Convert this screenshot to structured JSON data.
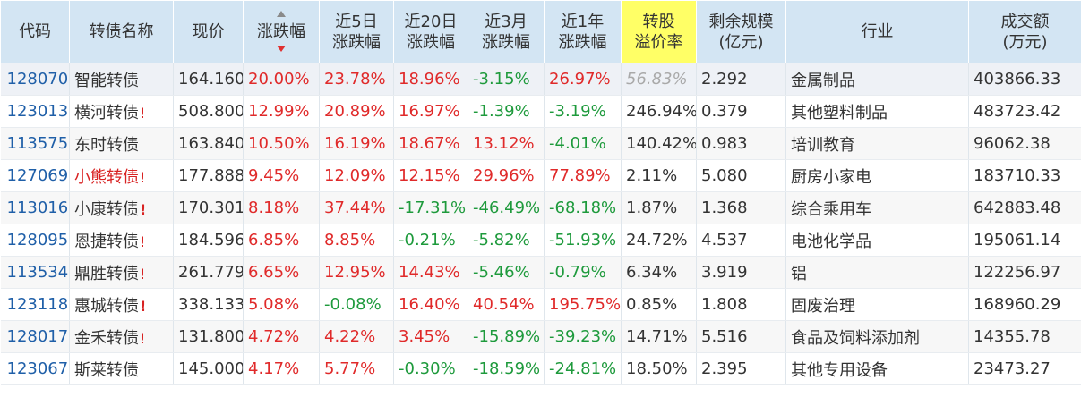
{
  "columns": [
    {
      "id": "code",
      "lines": [
        "代码",
        ""
      ]
    },
    {
      "id": "name",
      "lines": [
        "转债名称",
        ""
      ]
    },
    {
      "id": "price",
      "lines": [
        "现价",
        ""
      ]
    },
    {
      "id": "change",
      "lines": [
        "涨跌幅",
        ""
      ],
      "sorted": "desc"
    },
    {
      "id": "chg5d",
      "lines": [
        "近5日",
        "涨跌幅"
      ]
    },
    {
      "id": "chg20d",
      "lines": [
        "近20日",
        "涨跌幅"
      ]
    },
    {
      "id": "chg3m",
      "lines": [
        "近3月",
        "涨跌幅"
      ]
    },
    {
      "id": "chg1y",
      "lines": [
        "近1年",
        "涨跌幅"
      ]
    },
    {
      "id": "premium",
      "lines": [
        "转股",
        "溢价率"
      ],
      "highlight": "#ffff66"
    },
    {
      "id": "remaining",
      "lines": [
        "剩余规模",
        "(亿元)"
      ]
    },
    {
      "id": "industry",
      "lines": [
        "行业",
        ""
      ]
    },
    {
      "id": "volume",
      "lines": [
        "成交额",
        "(万元)"
      ]
    }
  ],
  "rows": [
    {
      "code": "128070",
      "name": "智能转债",
      "flag": "",
      "name_color": "normal",
      "price": "164.160",
      "change": "20.00%",
      "chg5d": "23.78%",
      "chg20d": "18.96%",
      "chg3m": "-3.15%",
      "chg1y": "26.97%",
      "premium": "56.83%",
      "premium_style": "gray-italic",
      "remaining": "2.292",
      "industry": "金属制品",
      "volume": "403866.33"
    },
    {
      "code": "123013",
      "name": "横河转债",
      "flag": "!",
      "name_color": "normal",
      "price": "508.800",
      "change": "12.99%",
      "chg5d": "20.89%",
      "chg20d": "16.97%",
      "chg3m": "-1.39%",
      "chg1y": "-3.19%",
      "premium": "246.94%",
      "premium_style": "normal",
      "remaining": "0.379",
      "industry": "其他塑料制品",
      "volume": "483723.42"
    },
    {
      "code": "113575",
      "name": "东时转债",
      "flag": "",
      "name_color": "normal",
      "price": "163.840",
      "change": "10.50%",
      "chg5d": "16.19%",
      "chg20d": "18.67%",
      "chg3m": "13.12%",
      "chg1y": "-4.01%",
      "premium": "140.42%",
      "premium_style": "normal",
      "remaining": "0.983",
      "industry": "培训教育",
      "volume": "96062.38"
    },
    {
      "code": "127069",
      "name": "小熊转债",
      "flag": "!",
      "name_color": "red",
      "price": "177.888",
      "change": "9.45%",
      "chg5d": "12.09%",
      "chg20d": "12.15%",
      "chg3m": "29.96%",
      "chg1y": "77.89%",
      "premium": "2.11%",
      "premium_style": "normal",
      "remaining": "5.080",
      "industry": "厨房小家电",
      "volume": "183710.33"
    },
    {
      "code": "113016",
      "name": "小康转债",
      "flag": "!",
      "flag_big": true,
      "name_color": "normal",
      "price": "170.301",
      "change": "8.18%",
      "chg5d": "37.44%",
      "chg20d": "-17.31%",
      "chg3m": "-46.49%",
      "chg1y": "-68.18%",
      "premium": "1.87%",
      "premium_style": "normal",
      "remaining": "1.368",
      "industry": "综合乘用车",
      "volume": "642883.48"
    },
    {
      "code": "128095",
      "name": "恩捷转债",
      "flag": "!",
      "name_color": "normal",
      "price": "184.596",
      "change": "6.85%",
      "chg5d": "8.85%",
      "chg20d": "-0.21%",
      "chg3m": "-5.82%",
      "chg1y": "-51.93%",
      "premium": "24.72%",
      "premium_style": "normal",
      "remaining": "4.537",
      "industry": "电池化学品",
      "volume": "195061.14"
    },
    {
      "code": "113534",
      "name": "鼎胜转债",
      "flag": "!",
      "name_color": "normal",
      "price": "261.779",
      "change": "6.65%",
      "chg5d": "12.95%",
      "chg20d": "14.43%",
      "chg3m": "-5.46%",
      "chg1y": "-0.79%",
      "premium": "6.34%",
      "premium_style": "normal",
      "remaining": "3.919",
      "industry": "铝",
      "volume": "122256.97"
    },
    {
      "code": "123118",
      "name": "惠城转债",
      "flag": "!",
      "flag_big": true,
      "name_color": "normal",
      "price": "338.133",
      "change": "5.08%",
      "chg5d": "-0.08%",
      "chg20d": "16.40%",
      "chg3m": "40.54%",
      "chg1y": "195.75%",
      "premium": "0.85%",
      "premium_style": "normal",
      "remaining": "1.808",
      "industry": "固废治理",
      "volume": "168960.29"
    },
    {
      "code": "128017",
      "name": "金禾转债",
      "flag": "!",
      "name_color": "normal",
      "price": "131.800",
      "change": "4.72%",
      "chg5d": "4.22%",
      "chg20d": "3.45%",
      "chg3m": "-15.89%",
      "chg1y": "-39.23%",
      "premium": "14.71%",
      "premium_style": "normal",
      "remaining": "5.516",
      "industry": "食品及饲料添加剂",
      "volume": "14355.78"
    },
    {
      "code": "123067",
      "name": "斯莱转债",
      "flag": "",
      "name_color": "normal",
      "price": "145.000",
      "change": "4.17%",
      "chg5d": "5.77%",
      "chg20d": "-0.30%",
      "chg3m": "-18.59%",
      "chg1y": "-24.81%",
      "premium": "18.50%",
      "premium_style": "normal",
      "remaining": "2.395",
      "industry": "其他专用设备",
      "volume": "23473.27"
    }
  ],
  "colors": {
    "header_bg": "#d3e5f3",
    "highlight_header": "#ffff66",
    "code_link": "#1f5fa8",
    "positive": "#e02a2a",
    "negative": "#1e9a3c",
    "warning_flag": "#d82222"
  }
}
